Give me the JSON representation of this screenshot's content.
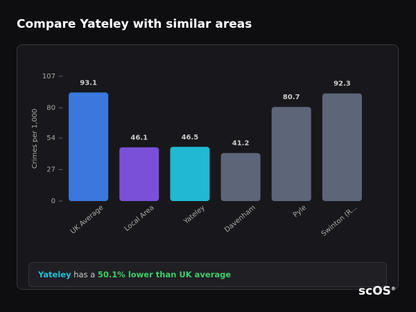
{
  "title": "Compare Yateley with similar areas",
  "chart_data": {
    "type": "bar",
    "y_label": "Crimes per 1,000",
    "categories": [
      "UK Average",
      "Local Area",
      "Yateley",
      "Davenham",
      "Pyle",
      "Swinton (R..."
    ],
    "values": [
      93.1,
      46.1,
      46.5,
      41.2,
      80.7,
      92.3
    ],
    "colors": [
      "#3a78de",
      "#7a50d8",
      "#20b8d2",
      "#5c6678",
      "#5c6678",
      "#5c6678"
    ],
    "ylim": [
      0,
      107
    ],
    "yticks": [
      0,
      27,
      54,
      80,
      107
    ],
    "grid": false
  },
  "summary": {
    "area": "Yateley",
    "text": "has a",
    "highlight": "50.1% lower than UK average"
  },
  "logo": {
    "text": "scOS",
    "mark": "®"
  }
}
